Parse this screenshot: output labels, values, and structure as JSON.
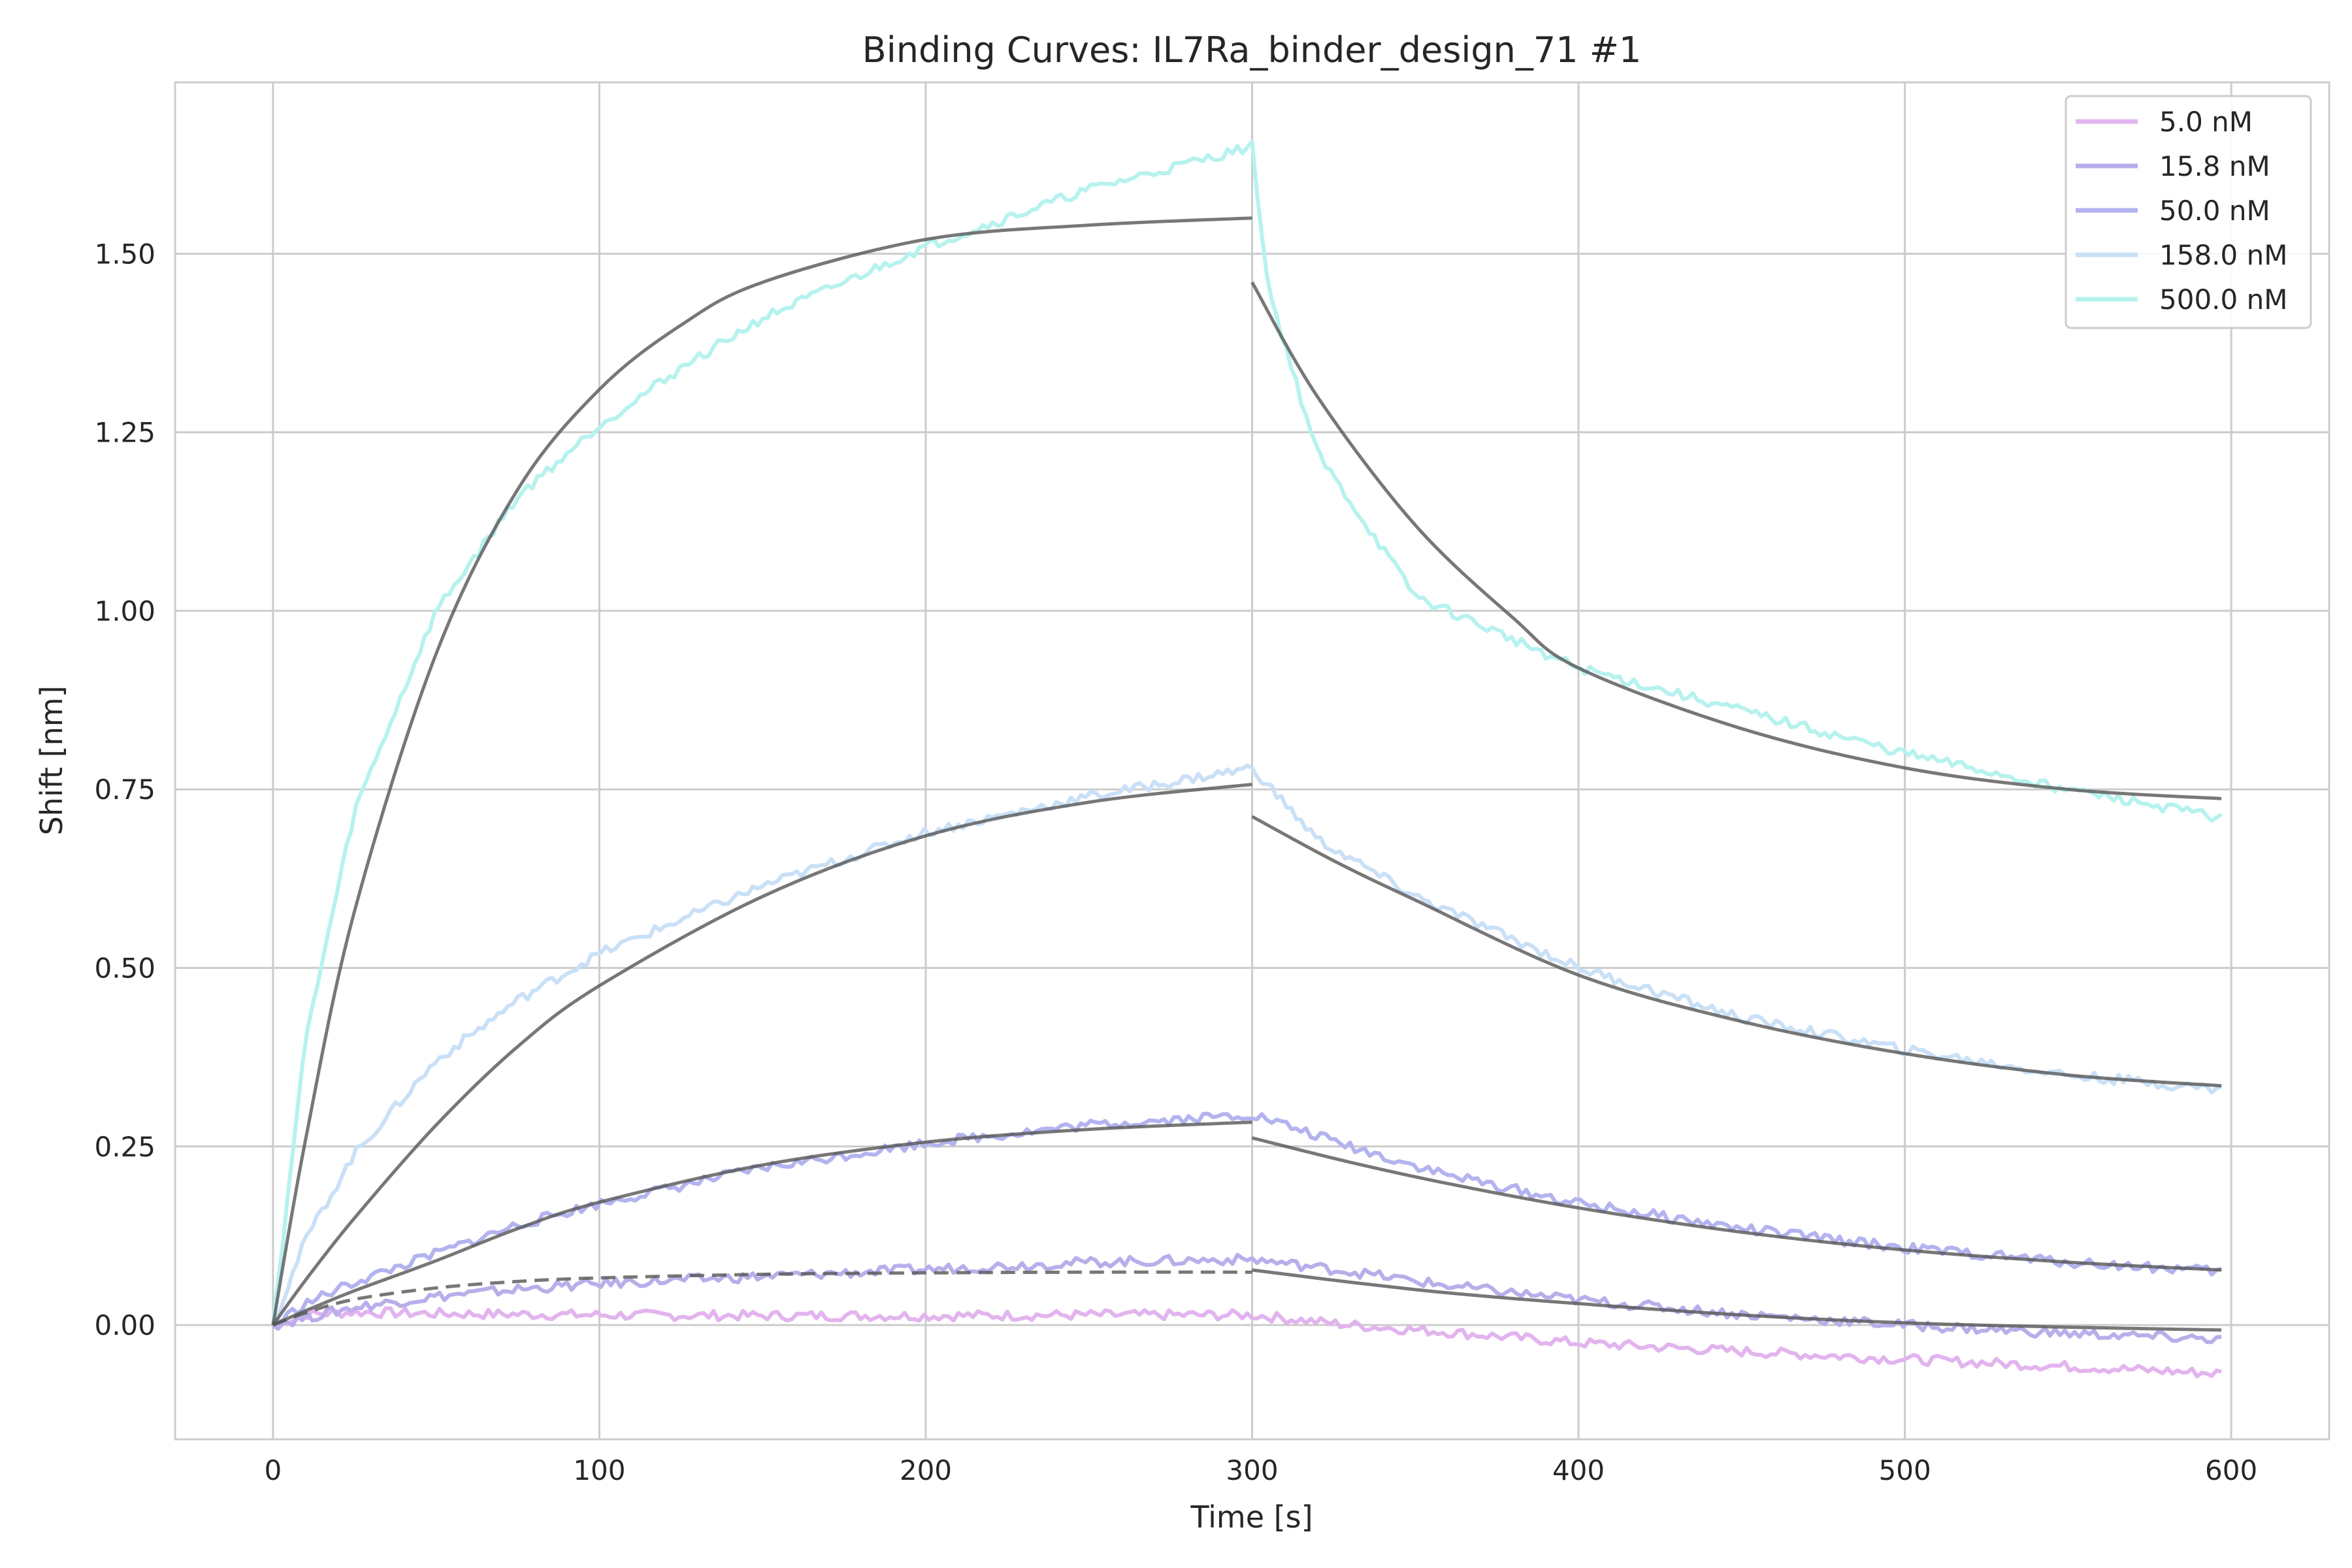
{
  "chart_data": {
    "type": "line",
    "title": "Binding Curves: IL7Ra_binder_design_71 #1",
    "xlabel": "Time [s]",
    "ylabel": "Shift [nm]",
    "xlim": [
      -30,
      630
    ],
    "ylim": [
      -0.16,
      1.74
    ],
    "xticks": [
      0,
      100,
      200,
      300,
      400,
      500,
      600
    ],
    "xtick_labels": [
      "0",
      "100",
      "200",
      "300",
      "400",
      "500",
      "600"
    ],
    "yticks": [
      0.0,
      0.25,
      0.5,
      0.75,
      1.0,
      1.25,
      1.5
    ],
    "ytick_labels": [
      "0.00",
      "0.25",
      "0.50",
      "0.75",
      "1.00",
      "1.25",
      "1.50"
    ],
    "grid": true,
    "legend": {
      "position": "top-right"
    },
    "series": [
      {
        "name": "5.0 nM",
        "color": "#e2b4ee",
        "x": [
          0,
          10,
          25,
          50,
          100,
          150,
          200,
          250,
          300,
          330,
          360,
          400,
          450,
          500,
          550,
          597
        ],
        "y": [
          0.0,
          0.015,
          0.018,
          0.016,
          0.014,
          0.013,
          0.013,
          0.014,
          0.014,
          0.0,
          -0.01,
          -0.025,
          -0.037,
          -0.048,
          -0.058,
          -0.068
        ]
      },
      {
        "name": "15.8 nM",
        "color": "#b9aeea",
        "x": [
          0,
          10,
          25,
          50,
          75,
          100,
          150,
          200,
          250,
          300,
          330,
          360,
          400,
          450,
          500,
          550,
          597
        ],
        "y": [
          0.0,
          0.01,
          0.025,
          0.04,
          0.05,
          0.058,
          0.068,
          0.078,
          0.088,
          0.092,
          0.075,
          0.055,
          0.035,
          0.015,
          0.0,
          -0.012,
          -0.02
        ]
      },
      {
        "name": "50.0 nM",
        "color": "#b3b3f0",
        "x": [
          0,
          10,
          25,
          50,
          75,
          100,
          150,
          200,
          250,
          300,
          330,
          360,
          400,
          450,
          500,
          550,
          597
        ],
        "y": [
          0.0,
          0.03,
          0.06,
          0.1,
          0.14,
          0.17,
          0.22,
          0.255,
          0.28,
          0.295,
          0.25,
          0.21,
          0.17,
          0.135,
          0.108,
          0.088,
          0.075
        ]
      },
      {
        "name": "158.0 nM",
        "color": "#c9e0f7",
        "x": [
          0,
          10,
          25,
          50,
          75,
          100,
          150,
          200,
          250,
          300,
          320,
          350,
          400,
          450,
          500,
          550,
          597
        ],
        "y": [
          0.0,
          0.12,
          0.24,
          0.37,
          0.455,
          0.52,
          0.615,
          0.69,
          0.74,
          0.78,
          0.68,
          0.6,
          0.5,
          0.43,
          0.385,
          0.35,
          0.33
        ]
      },
      {
        "name": "500.0 nM",
        "color": "#b6f2ee",
        "x": [
          0,
          10,
          25,
          50,
          75,
          100,
          125,
          150,
          175,
          200,
          225,
          250,
          275,
          300,
          305,
          320,
          350,
          400,
          450,
          500,
          550,
          597
        ],
        "y": [
          0.0,
          0.4,
          0.72,
          1.0,
          1.16,
          1.26,
          1.34,
          1.41,
          1.46,
          1.51,
          1.55,
          1.59,
          1.62,
          1.65,
          1.45,
          1.22,
          1.02,
          0.92,
          0.86,
          0.8,
          0.75,
          0.71
        ]
      }
    ],
    "fits": [
      {
        "style": "dashed",
        "x": [
          0,
          10,
          25,
          50,
          75,
          100,
          150,
          200,
          250,
          300
        ],
        "y": [
          0.0,
          0.017,
          0.036,
          0.052,
          0.061,
          0.066,
          0.071,
          0.073,
          0.074,
          0.074
        ]
      },
      {
        "style": "solid",
        "x": [
          300,
          330,
          360,
          400,
          450,
          500,
          550,
          597
        ],
        "y": [
          0.077,
          0.06,
          0.045,
          0.03,
          0.014,
          0.003,
          -0.003,
          -0.007
        ]
      },
      {
        "style": "solid",
        "x": [
          0,
          10,
          25,
          50,
          75,
          100,
          150,
          200,
          250,
          300
        ],
        "y": [
          0.0,
          0.02,
          0.048,
          0.09,
          0.135,
          0.172,
          0.224,
          0.256,
          0.274,
          0.284
        ]
      },
      {
        "style": "solid",
        "x": [
          300,
          330,
          360,
          400,
          450,
          500,
          550,
          597
        ],
        "y": [
          0.262,
          0.228,
          0.198,
          0.164,
          0.13,
          0.105,
          0.088,
          0.077
        ]
      },
      {
        "style": "solid",
        "x": [
          0,
          10,
          25,
          50,
          75,
          100,
          150,
          200,
          250,
          300
        ],
        "y": [
          0.0,
          0.063,
          0.15,
          0.28,
          0.39,
          0.475,
          0.6,
          0.685,
          0.732,
          0.757
        ]
      },
      {
        "style": "solid",
        "x": [
          300,
          325,
          350,
          400,
          450,
          500,
          550,
          597
        ],
        "y": [
          0.712,
          0.65,
          0.595,
          0.49,
          0.425,
          0.38,
          0.35,
          0.335
        ]
      },
      {
        "style": "solid",
        "x": [
          0,
          10,
          25,
          50,
          75,
          100,
          125,
          150,
          200,
          250,
          300
        ],
        "y": [
          0.0,
          0.26,
          0.58,
          0.94,
          1.17,
          1.31,
          1.4,
          1.46,
          1.52,
          1.54,
          1.55
        ]
      },
      {
        "style": "solid",
        "x": [
          300,
          320,
          350,
          380,
          400,
          450,
          500,
          550,
          597
        ],
        "y": [
          1.46,
          1.3,
          1.12,
          0.99,
          0.92,
          0.835,
          0.78,
          0.75,
          0.737
        ]
      }
    ]
  }
}
